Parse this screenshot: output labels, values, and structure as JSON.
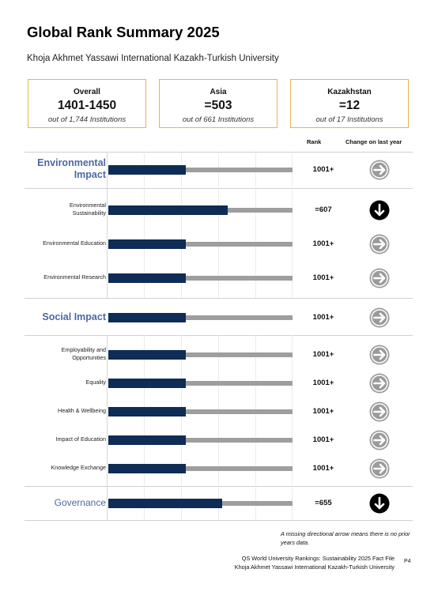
{
  "title": "Global Rank Summary 2025",
  "institution": "Khoja Akhmet Yassawi International Kazakh-Turkish University",
  "summary": [
    {
      "label": "Overall",
      "value": "1401-1450",
      "sub": "out of 1,744 Institutions"
    },
    {
      "label": "Asia",
      "value": "=503",
      "sub": "out of 661 Institutions"
    },
    {
      "label": "Kazakhstan",
      "value": "=12",
      "sub": "out of 17 Institutions"
    }
  ],
  "columns": {
    "rank": "Rank",
    "change": "Change on last year"
  },
  "rows": [
    {
      "label": "Environmental Impact",
      "kind": "major",
      "rank": "1001+",
      "change": "none",
      "fill": 0.42
    },
    {
      "label": "Environmental Sustainability",
      "kind": "minor",
      "rank": "=607",
      "change": "down",
      "fill": 0.65
    },
    {
      "label": "Environmental Education",
      "kind": "minor",
      "rank": "1001+",
      "change": "none",
      "fill": 0.42
    },
    {
      "label": "Environmental Research",
      "kind": "minor",
      "rank": "1001+",
      "change": "none",
      "fill": 0.42
    },
    {
      "label": "Social Impact",
      "kind": "major",
      "rank": "1001+",
      "change": "none",
      "fill": 0.42
    },
    {
      "label": "Employability and Opportunities",
      "kind": "minor",
      "rank": "1001+",
      "change": "none",
      "fill": 0.42
    },
    {
      "label": "Equality",
      "kind": "minor",
      "rank": "1001+",
      "change": "none",
      "fill": 0.42
    },
    {
      "label": "Health & Wellbeing",
      "kind": "minor",
      "rank": "1001+",
      "change": "none",
      "fill": 0.42
    },
    {
      "label": "Impact of Education",
      "kind": "minor",
      "rank": "1001+",
      "change": "none",
      "fill": 0.42
    },
    {
      "label": "Knowledge Exchange",
      "kind": "minor",
      "rank": "1001+",
      "change": "none",
      "fill": 0.42
    },
    {
      "label": "Governance",
      "kind": "gov",
      "rank": "=655",
      "change": "down",
      "fill": 0.62
    }
  ],
  "note": "A missing directional arrow means there is no prior years data.",
  "footer": {
    "line1": "QS World University Rankings: Sustainability 2025 Fact File",
    "line2": "Khoja Akhmet Yassawi International Kazakh-Turkish University",
    "page": "P4"
  },
  "colors": {
    "bar_fill": "#0e2c55",
    "bar_track": "#9e9e9e",
    "box_border": "#e8b54a",
    "category_text": "#4a69a8",
    "arrow_none": "#9a9a9a",
    "arrow_down": "#000000"
  },
  "icons": {
    "none": "arrow-right-icon",
    "down": "arrow-down-icon"
  }
}
